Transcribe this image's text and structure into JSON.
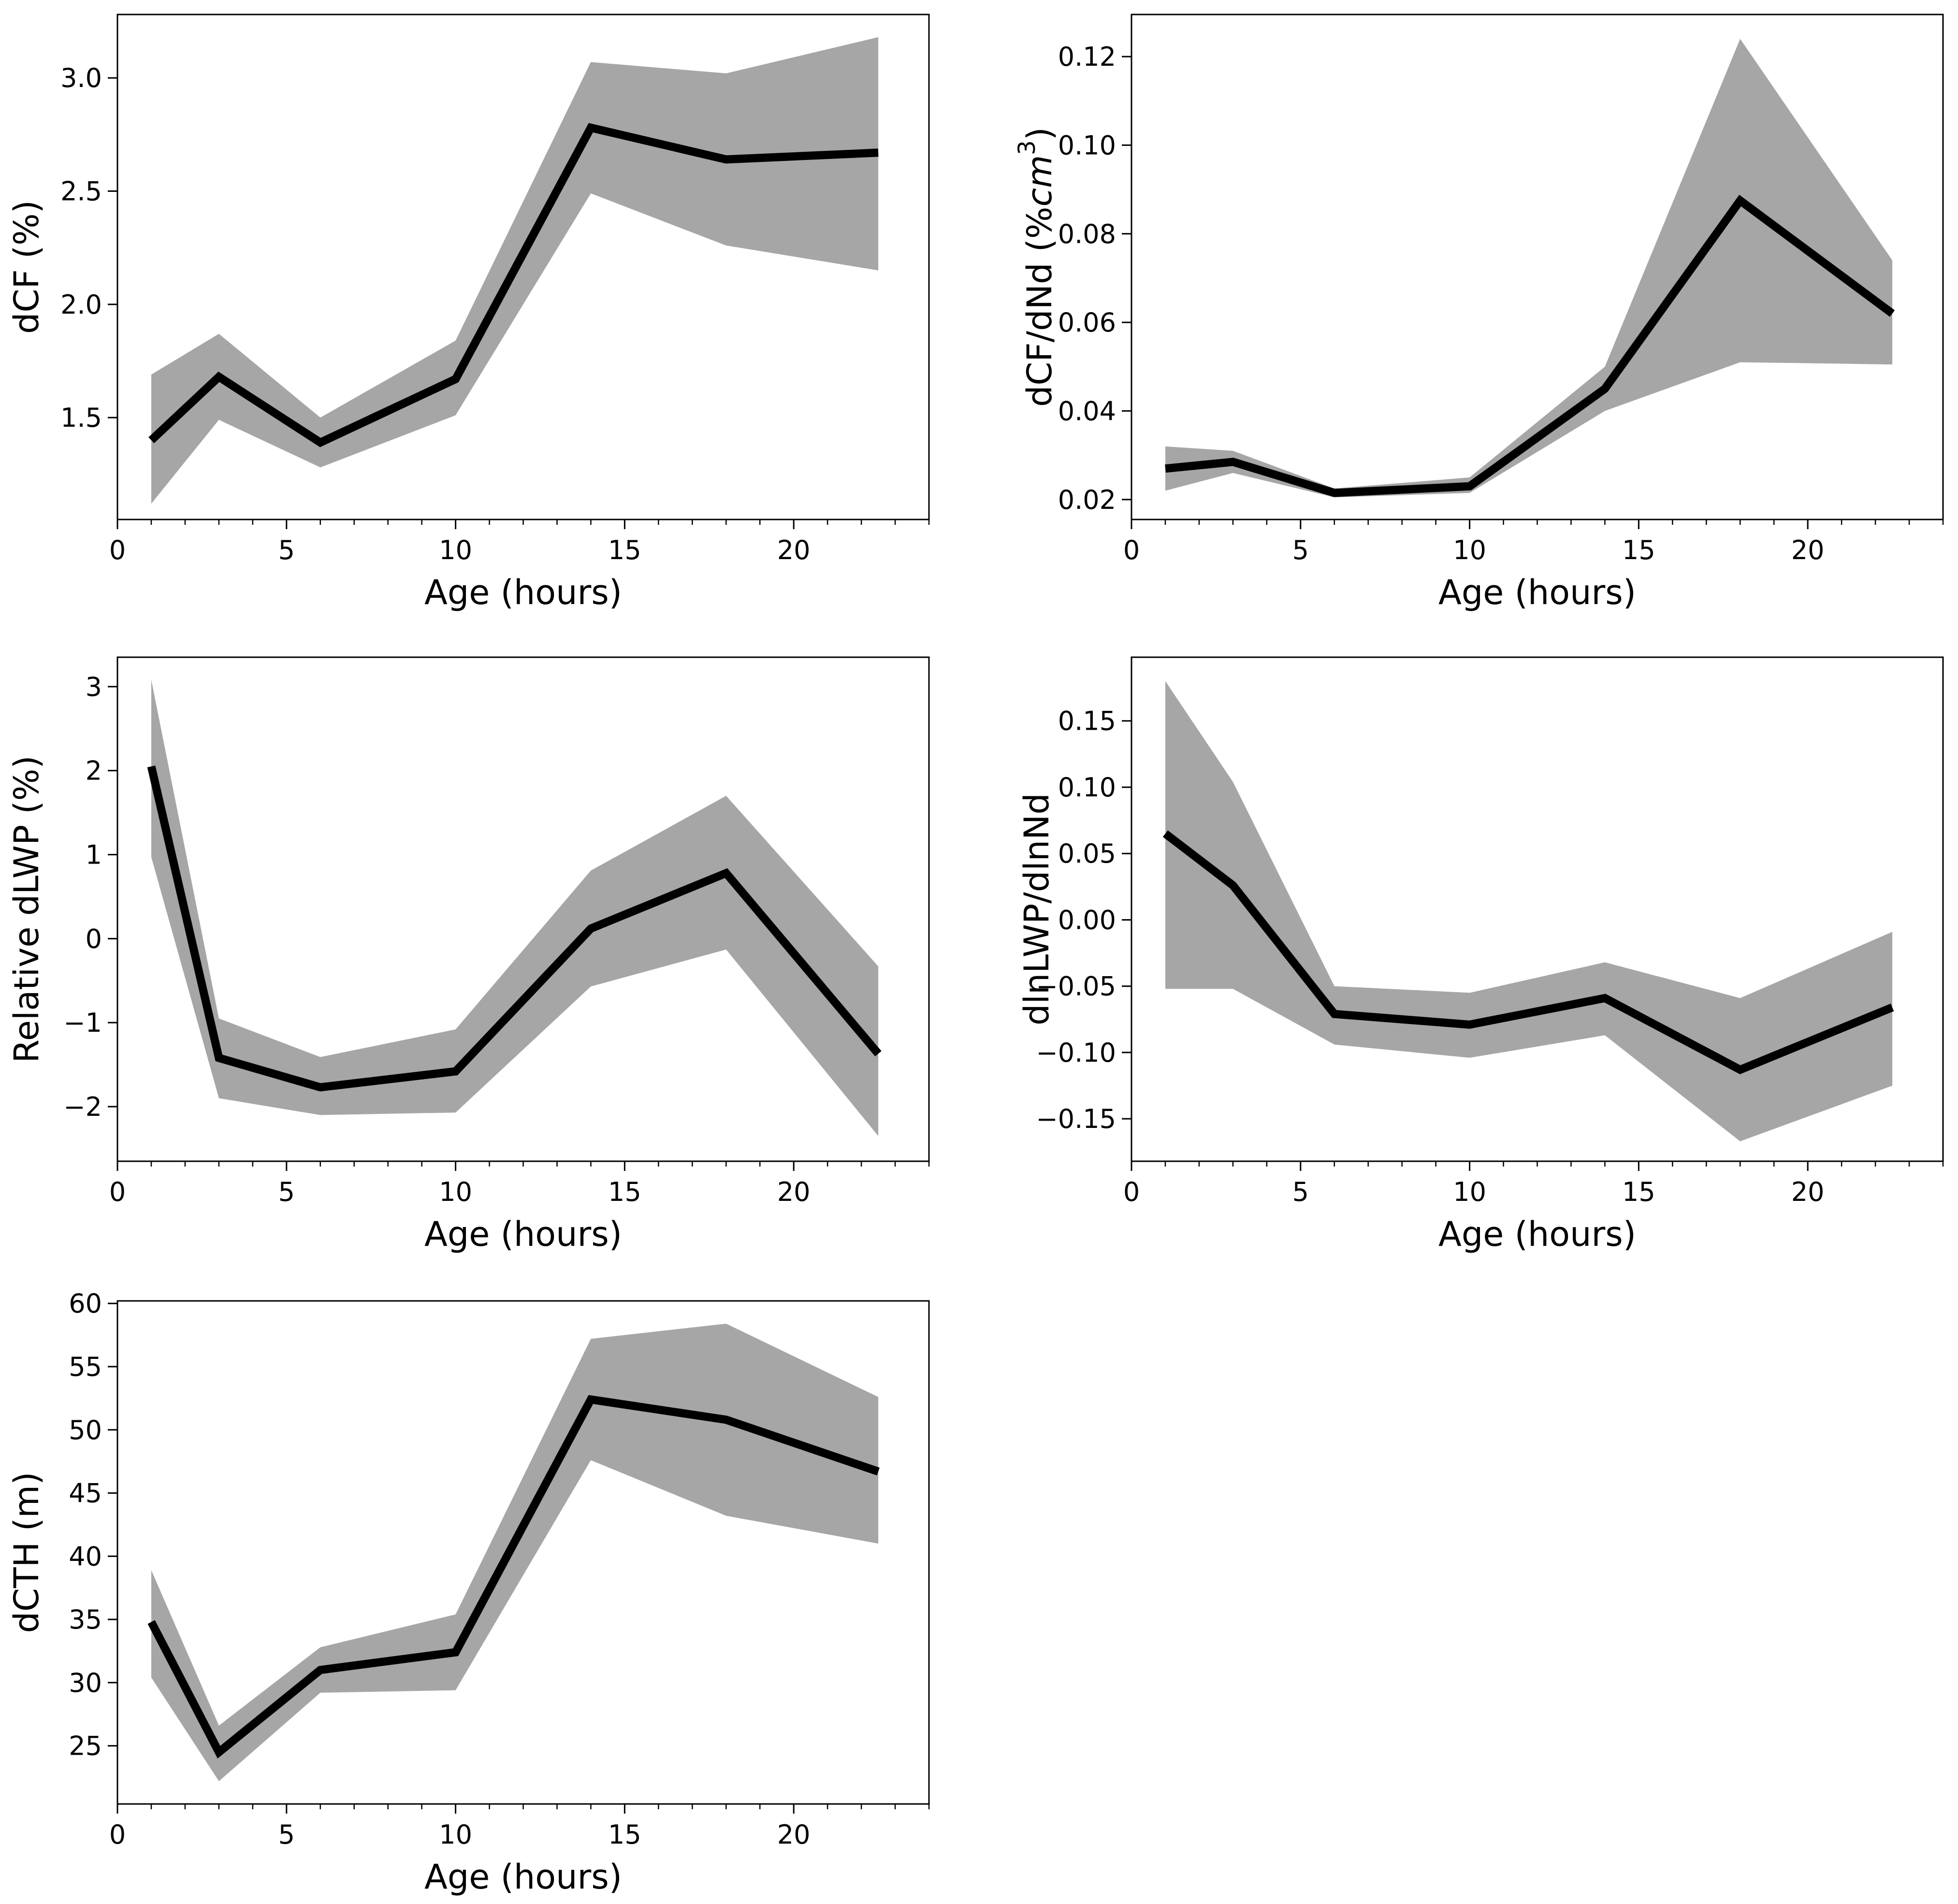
{
  "colors": {
    "line": "#000000",
    "band": "#a6a6a6",
    "axes": "#000000",
    "background": "#ffffff"
  },
  "chart_data": [
    {
      "id": "dcf",
      "type": "line",
      "title": "",
      "xlabel": "Age (hours)",
      "ylabel": "dCF (%)",
      "xlim": [
        0,
        24
      ],
      "ylim": [
        1.05,
        3.28
      ],
      "xticks": [
        0,
        5,
        10,
        15,
        20
      ],
      "yticks": [
        1.5,
        2.0,
        2.5,
        3.0
      ],
      "ytick_labels": [
        "1.5",
        "2.0",
        "2.5",
        "3.0"
      ],
      "x": [
        1,
        3,
        6,
        10,
        14,
        18,
        22.5
      ],
      "series": [
        {
          "name": "mean",
          "values": [
            1.4,
            1.68,
            1.39,
            1.67,
            2.78,
            2.64,
            2.67
          ]
        },
        {
          "name": "lower",
          "values": [
            1.12,
            1.49,
            1.28,
            1.51,
            2.49,
            2.26,
            2.15
          ]
        },
        {
          "name": "upper",
          "values": [
            1.69,
            1.87,
            1.5,
            1.84,
            3.07,
            3.02,
            3.18
          ]
        }
      ],
      "grid": false
    },
    {
      "id": "dcf_dnd",
      "type": "line",
      "title": "",
      "xlabel": "Age (hours)",
      "ylabel": "dCF/dNd (%cm³)",
      "ylabel_parts": [
        "dCF/dNd (%",
        "cm",
        "3",
        ")"
      ],
      "xlim": [
        0,
        24
      ],
      "ylim": [
        0.0155,
        0.1295
      ],
      "xticks": [
        0,
        5,
        10,
        15,
        20
      ],
      "yticks": [
        0.02,
        0.04,
        0.06,
        0.08,
        0.1,
        0.12
      ],
      "ytick_labels": [
        "0.02",
        "0.04",
        "0.06",
        "0.08",
        "0.10",
        "0.12"
      ],
      "x": [
        1,
        3,
        6,
        10,
        14,
        18,
        22.5
      ],
      "series": [
        {
          "name": "mean",
          "values": [
            0.027,
            0.0285,
            0.0215,
            0.023,
            0.045,
            0.0875,
            0.062
          ]
        },
        {
          "name": "lower",
          "values": [
            0.022,
            0.026,
            0.0205,
            0.0215,
            0.04,
            0.051,
            0.0505
          ]
        },
        {
          "name": "upper",
          "values": [
            0.032,
            0.031,
            0.0225,
            0.025,
            0.05,
            0.124,
            0.074
          ]
        }
      ],
      "grid": false
    },
    {
      "id": "dlwp",
      "type": "line",
      "title": "",
      "xlabel": "Age (hours)",
      "ylabel": "Relative dLWP (%)",
      "xlim": [
        0,
        24
      ],
      "ylim": [
        -2.65,
        3.35
      ],
      "xticks": [
        0,
        5,
        10,
        15,
        20
      ],
      "yticks": [
        -2,
        -1,
        0,
        1,
        2,
        3
      ],
      "ytick_labels": [
        "−2",
        "−1",
        "0",
        "1",
        "2",
        "3"
      ],
      "x": [
        1,
        3,
        6,
        10,
        14,
        18,
        22.5
      ],
      "series": [
        {
          "name": "mean",
          "values": [
            2.05,
            -1.42,
            -1.77,
            -1.58,
            0.12,
            0.78,
            -1.37
          ]
        },
        {
          "name": "lower",
          "values": [
            0.97,
            -1.9,
            -2.1,
            -2.07,
            -0.57,
            -0.13,
            -2.35
          ]
        },
        {
          "name": "upper",
          "values": [
            3.08,
            -0.95,
            -1.41,
            -1.08,
            0.81,
            1.7,
            -0.33
          ]
        }
      ],
      "grid": false
    },
    {
      "id": "dlnlwp_dlnnd",
      "type": "line",
      "title": "",
      "xlabel": "Age (hours)",
      "ylabel": "dlnLWP/dlnNd",
      "xlim": [
        0,
        24
      ],
      "ylim": [
        -0.182,
        0.198
      ],
      "xticks": [
        0,
        5,
        10,
        15,
        20
      ],
      "yticks": [
        -0.15,
        -0.1,
        -0.05,
        0.0,
        0.05,
        0.1,
        0.15
      ],
      "ytick_labels": [
        "−0.15",
        "−0.10",
        "−0.05",
        "0.00",
        "0.05",
        "0.10",
        "0.15"
      ],
      "x": [
        1,
        3,
        6,
        10,
        14,
        18,
        22.5
      ],
      "series": [
        {
          "name": "mean",
          "values": [
            0.065,
            0.026,
            -0.071,
            -0.079,
            -0.059,
            -0.113,
            -0.066
          ]
        },
        {
          "name": "lower",
          "values": [
            -0.052,
            -0.052,
            -0.094,
            -0.104,
            -0.087,
            -0.167,
            -0.125
          ]
        },
        {
          "name": "upper",
          "values": [
            0.18,
            0.104,
            -0.05,
            -0.055,
            -0.032,
            -0.059,
            -0.009
          ]
        }
      ],
      "grid": false
    },
    {
      "id": "dcth",
      "type": "line",
      "title": "",
      "xlabel": "Age (hours)",
      "ylabel": "dCTH (m)",
      "xlim": [
        0,
        24
      ],
      "ylim": [
        20.4,
        60.2
      ],
      "xticks": [
        0,
        5,
        10,
        15,
        20
      ],
      "yticks": [
        25,
        30,
        35,
        40,
        45,
        50,
        55,
        60
      ],
      "ytick_labels": [
        "25",
        "30",
        "35",
        "40",
        "45",
        "50",
        "55",
        "60"
      ],
      "x": [
        1,
        3,
        6,
        10,
        14,
        18,
        22.5
      ],
      "series": [
        {
          "name": "mean",
          "values": [
            34.8,
            24.5,
            31.0,
            32.4,
            52.4,
            50.8,
            46.7
          ]
        },
        {
          "name": "lower",
          "values": [
            30.4,
            22.2,
            29.2,
            29.4,
            47.6,
            43.2,
            41.0
          ]
        },
        {
          "name": "upper",
          "values": [
            38.9,
            26.6,
            32.8,
            35.4,
            57.2,
            58.4,
            52.6
          ]
        }
      ],
      "grid": false
    }
  ]
}
